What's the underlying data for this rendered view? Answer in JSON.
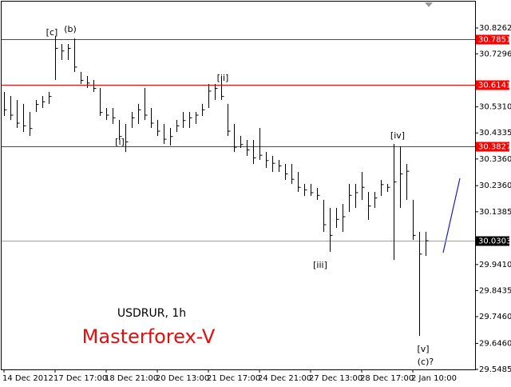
{
  "chart_data": {
    "type": "hlc",
    "symbol_label": "USDRUR, 1h",
    "brand": "Masterforex-V",
    "categories": [
      "14 Dec 2012",
      null,
      null,
      null,
      null,
      null,
      null,
      null,
      "17 Dec 17:00",
      null,
      null,
      null,
      null,
      null,
      null,
      null,
      "18 Dec 21:00",
      null,
      null,
      null,
      null,
      null,
      null,
      null,
      "20 Dec 13:00",
      null,
      null,
      null,
      null,
      null,
      null,
      null,
      "21 Dec 17:00",
      null,
      null,
      null,
      null,
      null,
      null,
      null,
      "24 Dec 21:00",
      null,
      null,
      null,
      null,
      null,
      null,
      null,
      "27 Dec 13:00",
      null,
      null,
      null,
      null,
      null,
      null,
      null,
      "28 Dec 17:00",
      null,
      null,
      null,
      null,
      null,
      null,
      null,
      "2 Jan 10:00",
      null,
      null
    ],
    "high": [
      30.5868,
      30.5718,
      30.5569,
      30.5419,
      30.512,
      30.5569,
      30.5718,
      30.5868,
      30.7962,
      30.7663,
      30.7663,
      30.7873,
      30.6616,
      30.6466,
      30.6317,
      30.6018,
      30.527,
      30.527,
      30.4821,
      30.4671,
      30.512,
      30.5419,
      30.6018,
      30.527,
      30.4821,
      30.4671,
      30.4522,
      30.4821,
      30.512,
      30.512,
      30.512,
      30.5419,
      30.6167,
      30.6167,
      30.6466,
      30.5419,
      30.4671,
      30.4222,
      30.4073,
      30.4073,
      30.4522,
      30.3624,
      30.3474,
      30.3325,
      30.3175,
      30.3175,
      30.2876,
      30.2427,
      30.2427,
      30.2277,
      30.1828,
      30.1529,
      30.1529,
      30.1679,
      30.2427,
      30.2427,
      30.2876,
      30.2128,
      30.2128,
      30.2577,
      30.2427,
      30.3923,
      30.3833,
      30.3175,
      30.1828,
      30.0632,
      30.0632
    ],
    "low": [
      30.497,
      30.4821,
      30.4522,
      30.4372,
      30.4222,
      30.512,
      30.527,
      30.5419,
      30.6317,
      30.7065,
      30.7065,
      30.6616,
      30.6167,
      30.6018,
      30.5868,
      30.497,
      30.4821,
      30.4671,
      30.4073,
      30.3624,
      30.4522,
      30.4671,
      30.4821,
      30.4522,
      30.4222,
      30.3923,
      30.3863,
      30.4372,
      30.4522,
      30.4522,
      30.4671,
      30.497,
      30.527,
      30.5569,
      30.5569,
      30.4222,
      30.3624,
      30.3773,
      30.3474,
      30.3175,
      30.3325,
      30.3025,
      30.2876,
      30.2876,
      30.2577,
      30.2427,
      30.2128,
      30.1978,
      30.1978,
      30.1828,
      30.0632,
      29.9883,
      30.0781,
      30.0632,
      30.1379,
      30.1529,
      30.1828,
      30.108,
      30.1529,
      30.1978,
      30.2128,
      29.9584,
      30.1529,
      30.1828,
      30.0332,
      29.6742,
      29.9734
    ],
    "close": [
      30.52,
      30.5,
      30.47,
      30.46,
      30.45,
      30.54,
      30.55,
      30.57,
      30.75,
      30.74,
      30.75,
      30.68,
      30.63,
      30.62,
      30.6,
      30.51,
      30.5,
      30.49,
      30.42,
      30.4,
      30.49,
      30.52,
      30.5,
      30.47,
      30.44,
      30.41,
      30.42,
      30.46,
      30.48,
      30.49,
      30.5,
      30.52,
      30.59,
      30.6,
      30.57,
      30.44,
      30.38,
      30.39,
      30.37,
      30.34,
      30.35,
      30.33,
      30.32,
      30.31,
      30.28,
      30.26,
      30.23,
      30.22,
      30.21,
      30.2,
      30.09,
      30.05,
      30.11,
      30.12,
      30.2,
      30.21,
      30.23,
      30.16,
      30.19,
      30.24,
      30.23,
      30.25,
      30.28,
      30.29,
      30.05,
      29.98,
      30.03
    ],
    "color": "#000000",
    "ylim": [
      29.5485,
      30.9309
    ],
    "yticks": [
      30.8262,
      30.7296,
      {
        "value": 30.531,
        "label": "30.5310"
      },
      30.4335,
      {
        "value": 30.336,
        "label": "30.3360"
      },
      {
        "value": 30.236,
        "label": "30.2360"
      },
      30.1385,
      {
        "value": 29.941,
        "label": "29.9410"
      },
      29.8435,
      {
        "value": 29.746,
        "label": "29.7460"
      },
      {
        "value": 29.646,
        "label": "29.6460"
      },
      29.5485
    ],
    "levels": [
      30.7851,
      30.6141,
      30.3827
    ],
    "level_color": "#ff0000",
    "last_price": 30.0303,
    "annotations": [
      "[c]",
      "(b)",
      "[i]",
      "[ii]",
      "[iii]",
      "[iv]",
      "[v]",
      "(c)?"
    ]
  }
}
